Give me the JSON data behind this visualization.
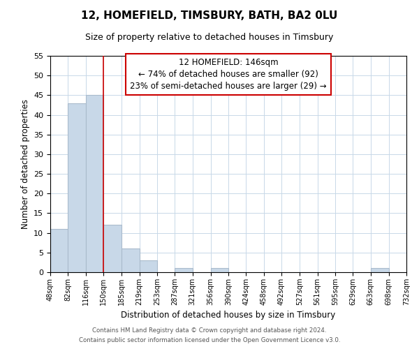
{
  "title": "12, HOMEFIELD, TIMSBURY, BATH, BA2 0LU",
  "subtitle": "Size of property relative to detached houses in Timsbury",
  "xlabel": "Distribution of detached houses by size in Timsbury",
  "ylabel": "Number of detached properties",
  "bin_edges": [
    48,
    82,
    116,
    150,
    185,
    219,
    253,
    287,
    321,
    356,
    390,
    424,
    458,
    492,
    527,
    561,
    595,
    629,
    663,
    698,
    732
  ],
  "counts": [
    11,
    43,
    45,
    12,
    6,
    3,
    0,
    1,
    0,
    1,
    0,
    0,
    0,
    0,
    0,
    0,
    0,
    0,
    1,
    0
  ],
  "bar_color": "#c8d8e8",
  "bar_edge_color": "#aabbcc",
  "vline_x": 150,
  "vline_color": "#cc0000",
  "ylim": [
    0,
    55
  ],
  "yticks": [
    0,
    5,
    10,
    15,
    20,
    25,
    30,
    35,
    40,
    45,
    50,
    55
  ],
  "annotation_line1": "12 HOMEFIELD: 146sqm",
  "annotation_line2": "← 74% of detached houses are smaller (92)",
  "annotation_line3": "23% of semi-detached houses are larger (29) →",
  "annotation_bbox_color": "#ffffff",
  "annotation_bbox_edge": "#cc0000",
  "footer_line1": "Contains HM Land Registry data © Crown copyright and database right 2024.",
  "footer_line2": "Contains public sector information licensed under the Open Government Licence v3.0.",
  "tick_labels": [
    "48sqm",
    "82sqm",
    "116sqm",
    "150sqm",
    "185sqm",
    "219sqm",
    "253sqm",
    "287sqm",
    "321sqm",
    "356sqm",
    "390sqm",
    "424sqm",
    "458sqm",
    "492sqm",
    "527sqm",
    "561sqm",
    "595sqm",
    "629sqm",
    "663sqm",
    "698sqm",
    "732sqm"
  ],
  "background_color": "#ffffff",
  "grid_color": "#c8d8e8"
}
